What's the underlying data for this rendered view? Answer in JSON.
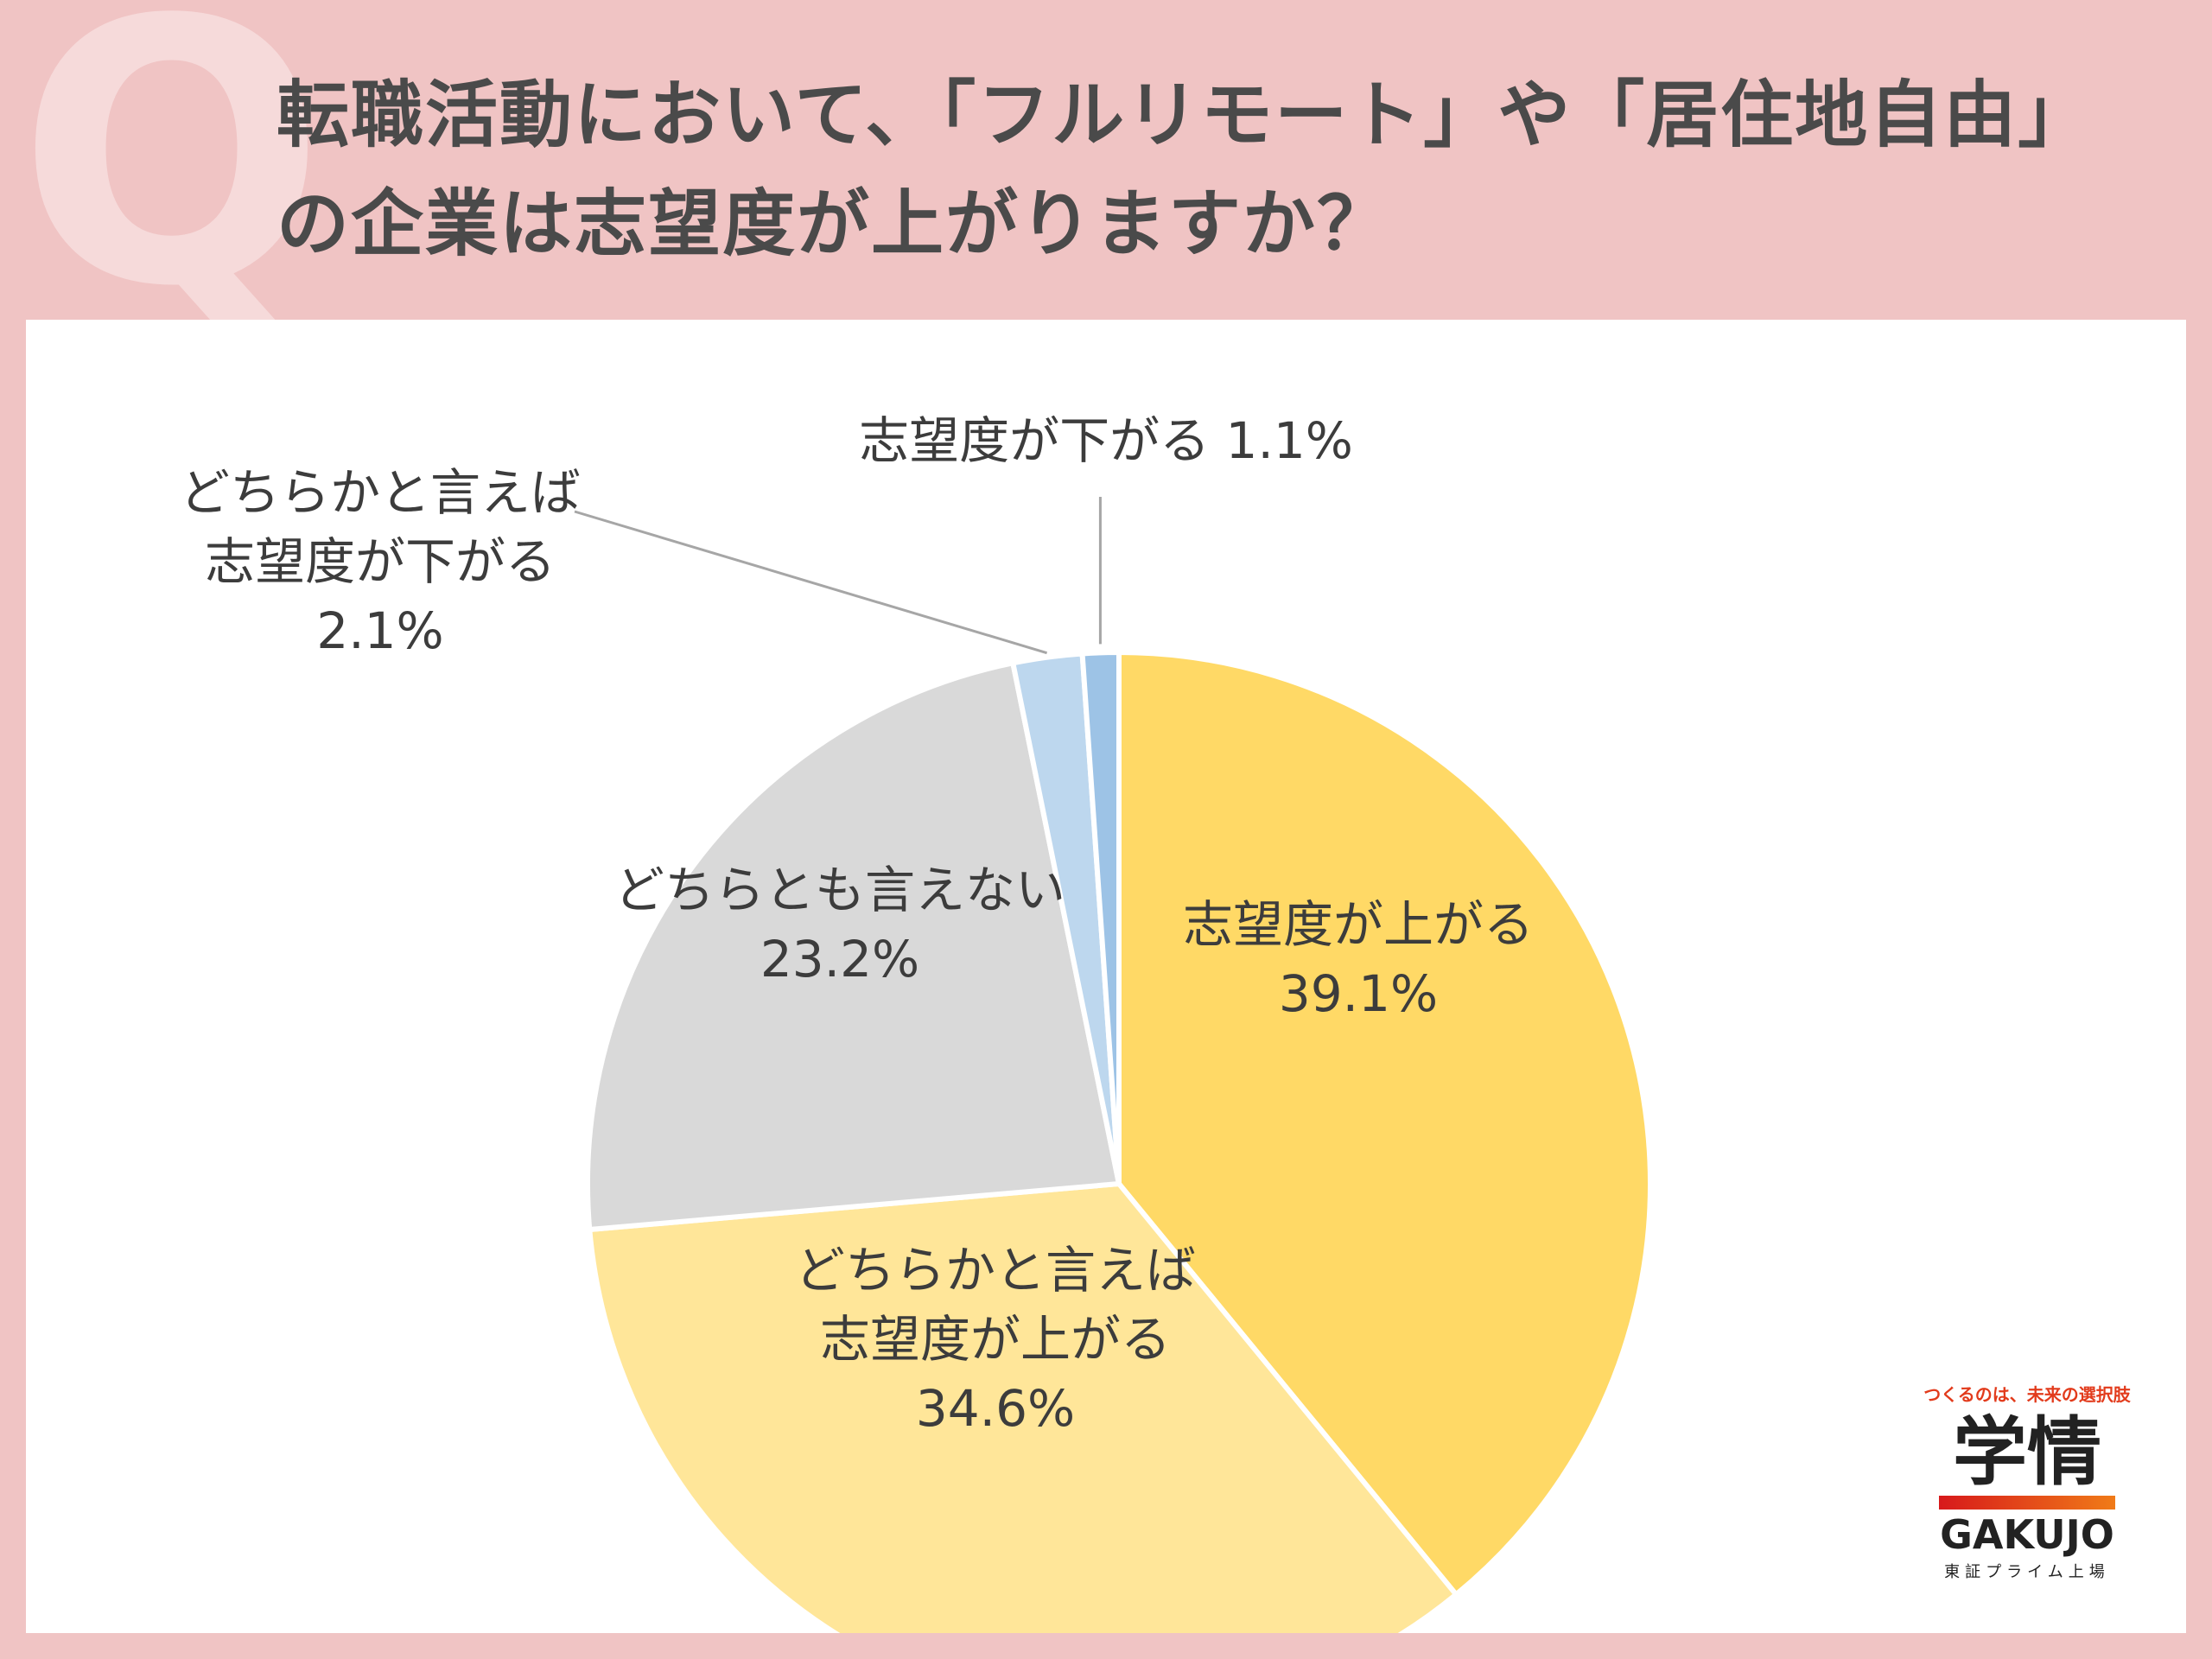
{
  "header": {
    "q_mark": "Q",
    "title_line1": "転職活動において、「フルリモート」や「居住地自由」",
    "title_line2": "の企業は志望度が上がりますか？"
  },
  "chart_data": {
    "type": "pie",
    "start_angle_deg": 0,
    "direction": "clockwise",
    "slices": [
      {
        "label": "志望度が上がる",
        "value": 39.1,
        "value_label": "39.1%",
        "color": "#ffd966"
      },
      {
        "label": "どちらかと言えば志望度が上がる",
        "value": 34.6,
        "value_label": "34.6%",
        "color": "#ffe699"
      },
      {
        "label": "どちらとも言えない",
        "value": 23.2,
        "value_label": "23.2%",
        "color": "#d9d9d9"
      },
      {
        "label": "どちらかと言えば志望度が下がる",
        "value": 2.1,
        "value_label": "2.1%",
        "color": "#bdd7ee"
      },
      {
        "label": "志望度が下がる",
        "value": 1.1,
        "value_label": "1.1%",
        "color": "#9dc3e6"
      }
    ]
  },
  "labels": {
    "up": {
      "line1": "志望度が上がる",
      "line2": "39.1%"
    },
    "somewhat_up": {
      "line1": "どちらかと言えば",
      "line2": "志望度が上がる",
      "line3": "34.6%"
    },
    "neutral": {
      "line1": "どちらとも言えない",
      "line2": "23.2%"
    },
    "somewhat_down": {
      "line1": "どちらかと言えば",
      "line2": "志望度が下がる",
      "line3": "2.1%"
    },
    "down": {
      "line1": "志望度が下がる 1.1%"
    }
  },
  "brand": {
    "tagline": "つくるのは、未来の選択肢",
    "kanji": "学情",
    "english": "GAKUJO",
    "subtitle": "東証プライム上場"
  }
}
